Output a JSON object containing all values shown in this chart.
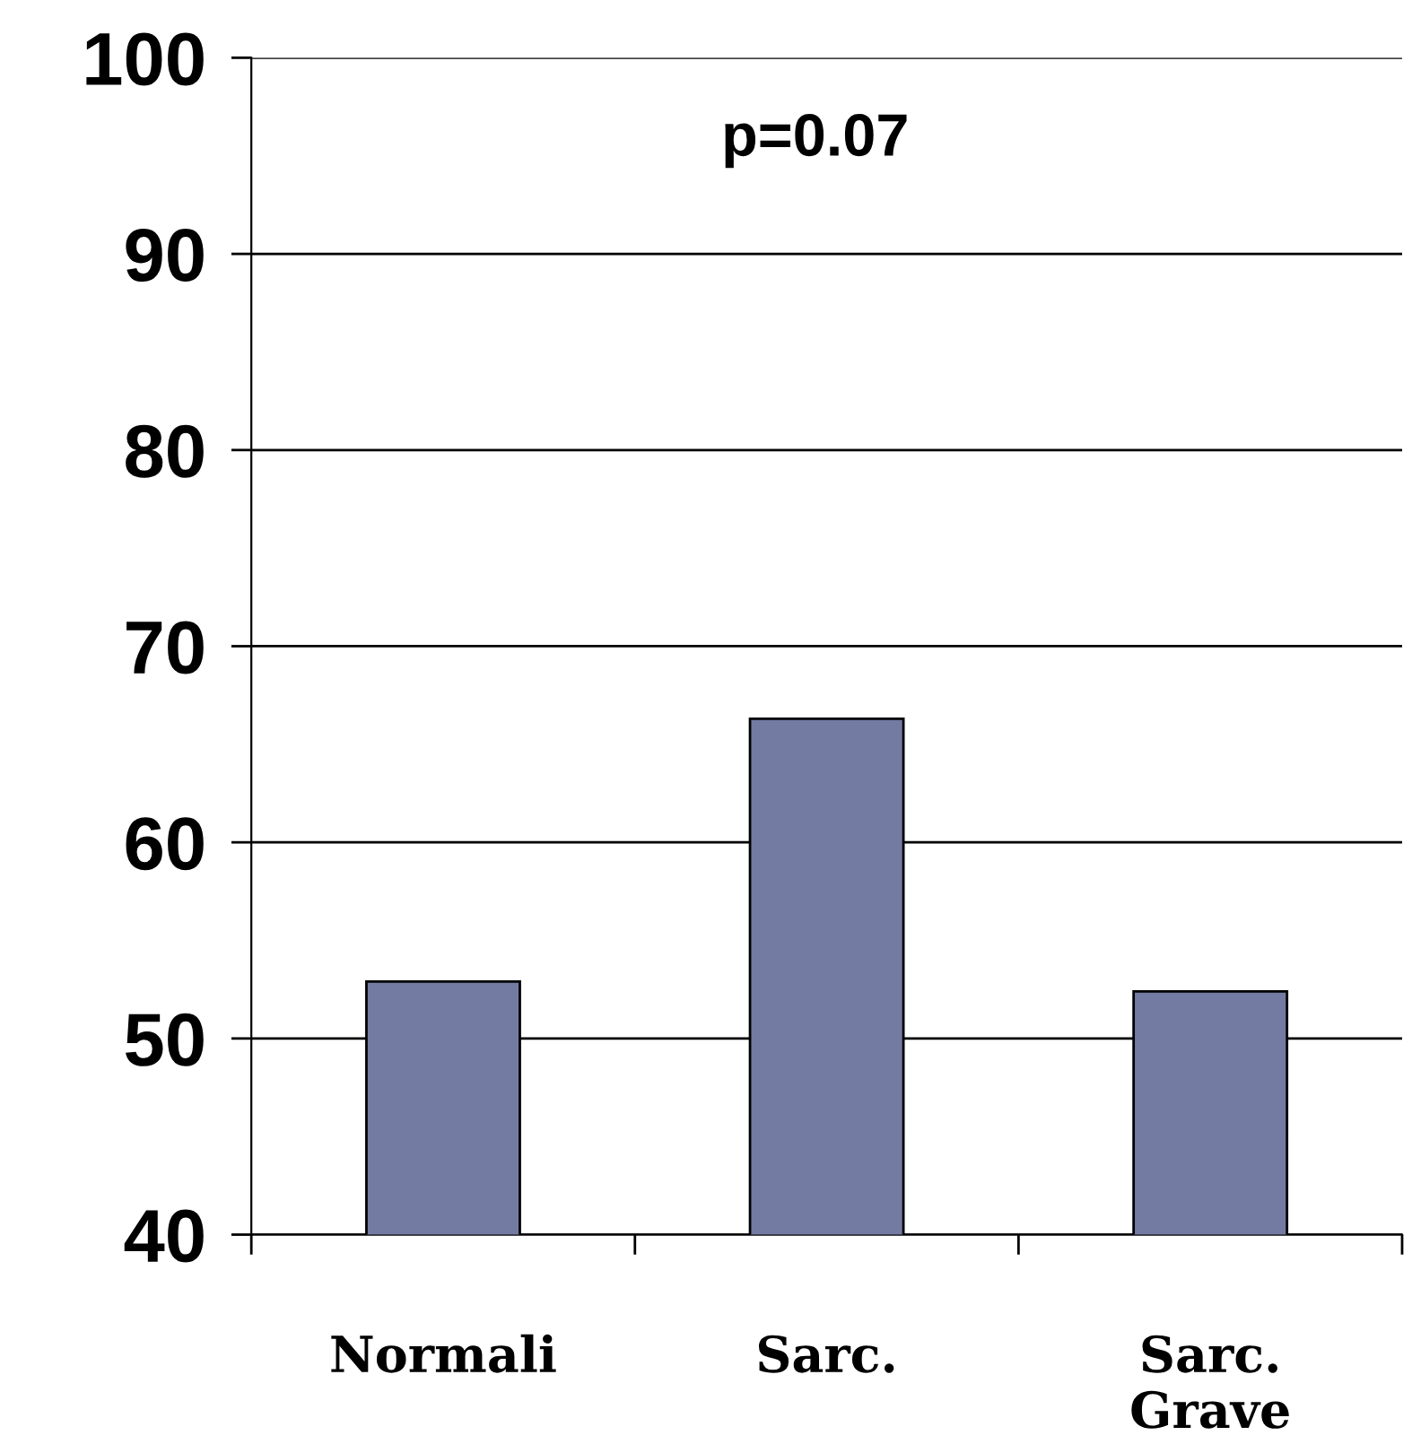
{
  "chart_data": {
    "type": "bar",
    "categories": [
      "Normali",
      "Sarc.",
      "Sarc.\nGrave"
    ],
    "values": [
      52.9,
      66.3,
      52.4
    ],
    "color": "#737ba3",
    "ylim": [
      40,
      100
    ],
    "yticks": [
      40,
      50,
      60,
      70,
      80,
      90,
      100
    ],
    "grid": "y",
    "annotations": [
      "p=0.07"
    ]
  }
}
